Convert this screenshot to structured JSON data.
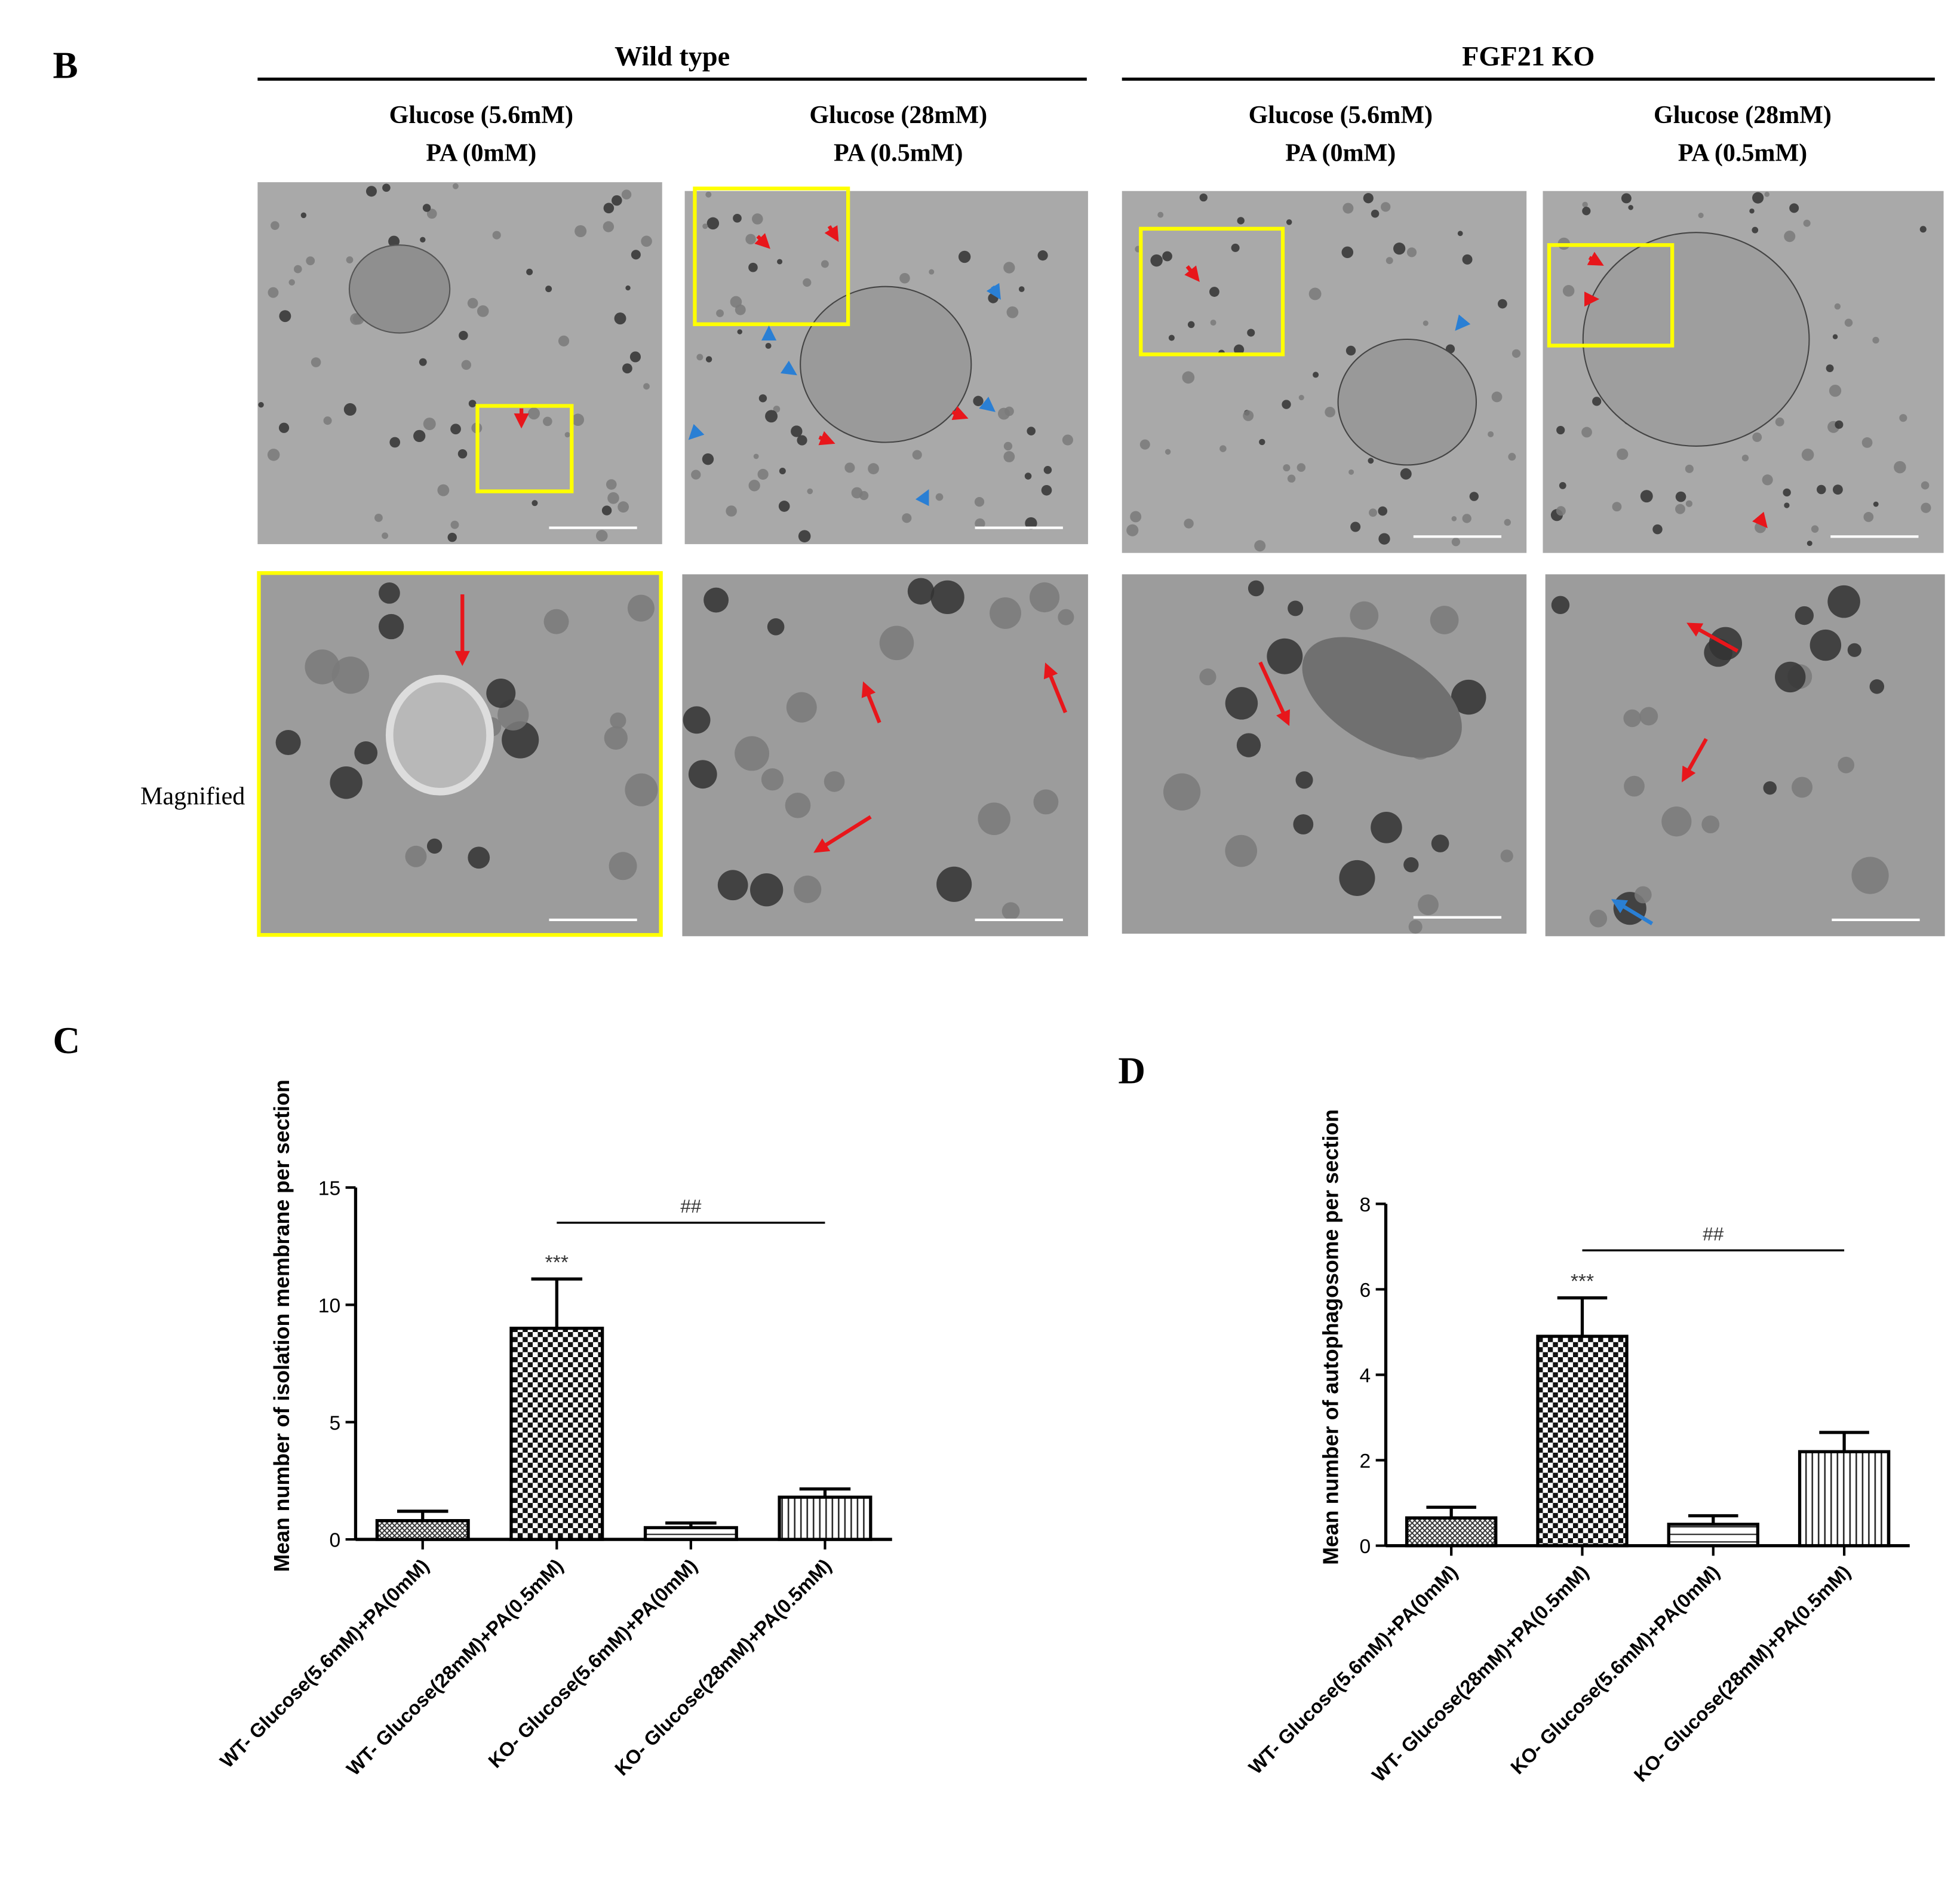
{
  "panel_b": {
    "label": "B",
    "groups": [
      {
        "title": "Wild type",
        "conditions": [
          [
            "Glucose (5.6mM)",
            "PA (0mM)"
          ],
          [
            "Glucose (28mM)",
            "PA (0.5mM)"
          ]
        ]
      },
      {
        "title": "FGF21  KO",
        "conditions": [
          [
            "Glucose (5.6mM)",
            "PA (0mM)"
          ],
          [
            "Glucose (28mM)",
            "PA (0.5mM)"
          ]
        ]
      }
    ],
    "row_label": "Magnified"
  },
  "chart_data": [
    {
      "type": "bar",
      "panel": "C",
      "y_label": "Mean number of isolation membrane per section",
      "categories": [
        "WT- Glucose(5.6mM)+PA(0mM)",
        "WT- Glucose(28mM)+PA(0.5mM)",
        "KO- Glucose(5.6mM)+PA(0mM)",
        "KO- Glucose(28mM)+PA(0.5mM)"
      ],
      "values": [
        0.8,
        9.0,
        0.5,
        1.8
      ],
      "errors": [
        0.4,
        2.1,
        0.2,
        0.35
      ],
      "fills": [
        "crosshatch",
        "checker",
        "hstripe",
        "vstripe"
      ],
      "ylim": [
        0,
        15
      ],
      "yticks": [
        0,
        5,
        10,
        15
      ],
      "annotations": [
        "***",
        "##"
      ]
    },
    {
      "type": "bar",
      "panel": "D",
      "y_label": "Mean number of autophagosome per section",
      "categories": [
        "WT- Glucose(5.6mM)+PA(0mM)",
        "WT- Glucose(28mM)+PA(0.5mM)",
        "KO- Glucose(5.6mM)+PA(0mM)",
        "KO- Glucose(28mM)+PA(0.5mM)"
      ],
      "values": [
        0.65,
        4.9,
        0.5,
        2.2
      ],
      "errors": [
        0.25,
        0.9,
        0.2,
        0.45
      ],
      "fills": [
        "crosshatch",
        "checker",
        "hstripe",
        "vstripe"
      ],
      "ylim": [
        0,
        8
      ],
      "yticks": [
        0,
        2,
        4,
        6,
        8
      ],
      "annotations": [
        "***",
        "##"
      ]
    }
  ]
}
